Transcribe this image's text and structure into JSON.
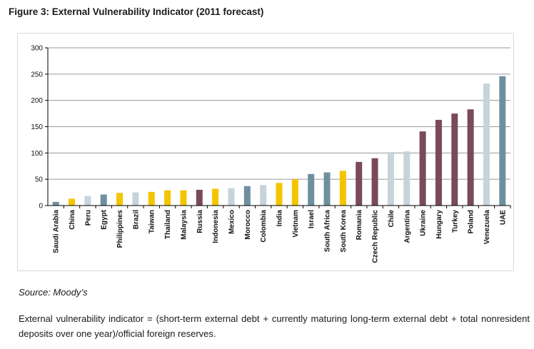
{
  "figure": {
    "title": "Figure 3: External Vulnerability Indicator (2011 forecast)",
    "source": "Source: Moody’s",
    "footnote": "External vulnerability indicator = (short-term external debt + currently maturing long-term external debt + total nonresident deposits over one year)/official foreign reserves."
  },
  "colors": {
    "yellow": "#f5c400",
    "steel": "#6f8fa1",
    "light": "#c7d3db",
    "maroon": "#7a4a5a",
    "grid": "#9a9a9a",
    "axis": "#000000"
  },
  "chart_data": {
    "type": "bar",
    "title": "",
    "xlabel": "",
    "ylabel": "",
    "ylim": [
      0,
      300
    ],
    "yticks": [
      0,
      50,
      100,
      150,
      200,
      250,
      300
    ],
    "grid": true,
    "legend": "none",
    "categories": [
      "Saudi Arabia",
      "China",
      "Peru",
      "Egypt",
      "Philippines",
      "Brazil",
      "Taiwan",
      "Thailand",
      "Malaysia",
      "Russia",
      "Indonesia",
      "Mexico",
      "Morocco",
      "Colombia",
      "India",
      "Vietnam",
      "Israel",
      "South Africa",
      "South Korea",
      "Romania",
      "Czech Republic",
      "Chile",
      "Argentina",
      "Ukraine",
      "Hungary",
      "Turkey",
      "Poland",
      "Venezuela",
      "UAE"
    ],
    "values": [
      7,
      13,
      18,
      21,
      24,
      25,
      26,
      29,
      29,
      30,
      32,
      33,
      37,
      39,
      43,
      50,
      60,
      63,
      66,
      83,
      90,
      102,
      103,
      141,
      163,
      175,
      183,
      232,
      246
    ],
    "bar_colors": [
      "steel",
      "yellow",
      "light",
      "steel",
      "yellow",
      "light",
      "yellow",
      "yellow",
      "yellow",
      "maroon",
      "yellow",
      "light",
      "steel",
      "light",
      "yellow",
      "yellow",
      "steel",
      "steel",
      "yellow",
      "maroon",
      "maroon",
      "light",
      "light",
      "maroon",
      "maroon",
      "maroon",
      "maroon",
      "light",
      "steel"
    ]
  }
}
